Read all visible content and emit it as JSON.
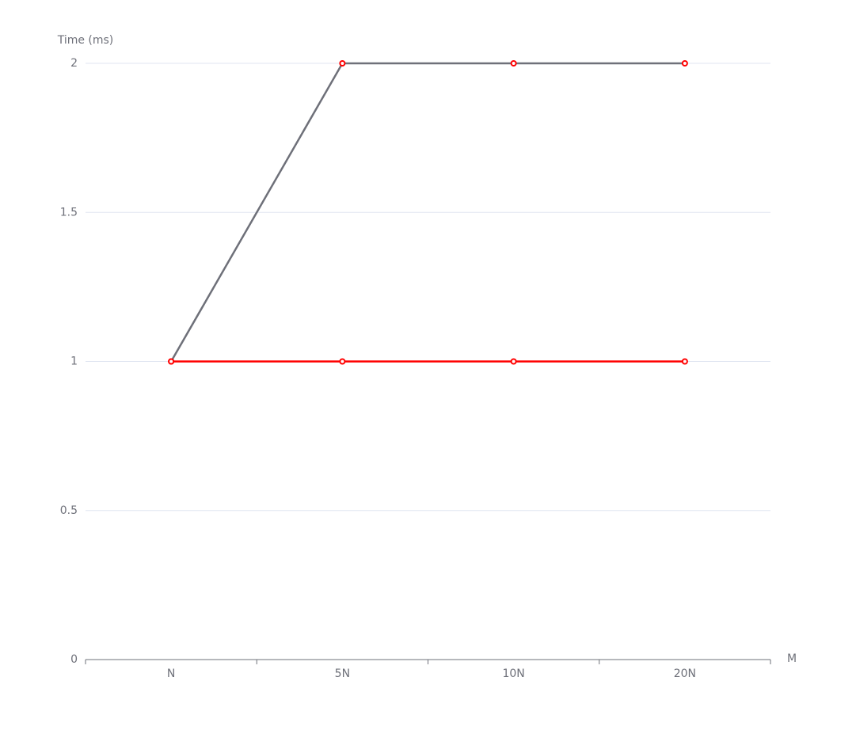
{
  "chart_data": {
    "type": "line",
    "y_label": "Time (ms)",
    "x_label": "M",
    "categories": [
      "N",
      "5N",
      "10N",
      "20N"
    ],
    "series": [
      {
        "color": "#6e7079",
        "marker_color": "#ff0000",
        "values": [
          1,
          2,
          2,
          2
        ]
      },
      {
        "color": "#ff0000",
        "marker_color": "#ff0000",
        "values": [
          1,
          1,
          1,
          1
        ]
      }
    ],
    "ylim": [
      0,
      2
    ],
    "yticks": [
      0,
      0.5,
      1,
      1.5,
      2
    ],
    "grid": true
  }
}
